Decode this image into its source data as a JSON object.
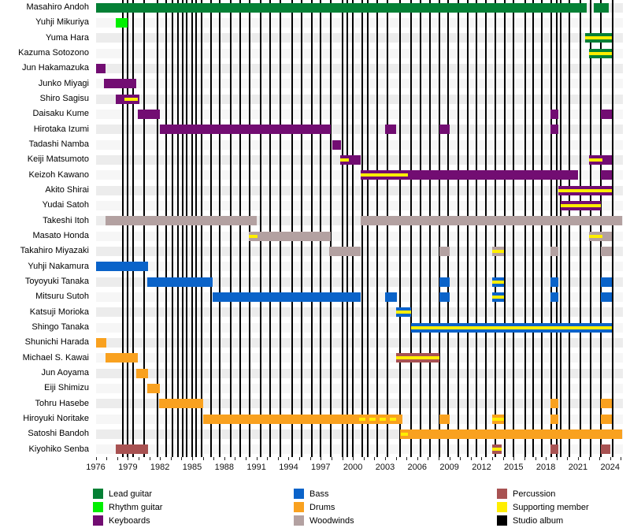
{
  "chart_data": {
    "type": "timeline",
    "description": "Band membership timeline by instrument, 1976-2025, with vertical lines marking studio albums",
    "x_axis": {
      "start": 1976,
      "end": 2025.2,
      "tick_labels": [
        "1976",
        "1979",
        "1982",
        "1985",
        "1988",
        "1991",
        "1994",
        "1997",
        "2000",
        "2003",
        "2006",
        "2009",
        "2012",
        "2015",
        "2018",
        "2021",
        "2024"
      ],
      "minor_tick_every_year": true
    },
    "colors": {
      "lead": "#048035",
      "rhythm": "#00ef00",
      "keys": "#720d72",
      "bass": "#0a63c9",
      "drums": "#f9a11f",
      "wood": "#b3a1a1",
      "perc": "#a85252",
      "support": "#ffee00",
      "album": "#000000",
      "band_even": "#ececec",
      "band_odd": "#f6f6f6"
    },
    "album_line_years": [
      1978.5,
      1979.0,
      1979.5,
      1980.5,
      1981.8,
      1982.6,
      1983.2,
      1983.7,
      1984.1,
      1984.5,
      1985.0,
      1985.4,
      1985.9,
      1986.8,
      1987.6,
      1988.6,
      1989.5,
      1990.4,
      1991.4,
      1992.3,
      1993.2,
      1994.3,
      1995.2,
      1996.2,
      1997.0,
      1997.9,
      1999.0,
      1999.5,
      2000.0,
      2000.9,
      2001.4,
      2002.3,
      2003.2,
      2004.4,
      2005.4,
      2006.3,
      2007.2,
      2008.1,
      2008.9,
      2009.8,
      2010.7,
      2011.5,
      2012.4,
      2013.3,
      2014.2,
      2015.0,
      2016.1,
      2016.8,
      2017.6,
      2018.5,
      2019.0,
      2019.4,
      2020.2,
      2021.2,
      2022.2,
      2023.1,
      2024.2
    ],
    "members": [
      {
        "name": "Masahiro Andoh",
        "segments": [
          {
            "role": "lead",
            "start": 1976.0,
            "end": 2021.8
          },
          {
            "role": "lead",
            "start": 2022.5,
            "end": 2023.9
          }
        ]
      },
      {
        "name": "Yuhji Mikuriya",
        "segments": [
          {
            "role": "rhythm",
            "start": 1977.9,
            "end": 1979.0
          }
        ]
      },
      {
        "name": "Yuma Hara",
        "segments": [
          {
            "role": "lead",
            "start": 2021.7,
            "end": 2024.2,
            "support": "full"
          }
        ]
      },
      {
        "name": "Kazuma Sotozono",
        "segments": [
          {
            "role": "lead",
            "start": 2022.0,
            "end": 2024.2,
            "support": "full"
          }
        ]
      },
      {
        "name": "Jun Hakamazuka",
        "segments": [
          {
            "role": "keys",
            "start": 1976.0,
            "end": 1976.9
          }
        ]
      },
      {
        "name": "Junko Miyagi",
        "segments": [
          {
            "role": "keys",
            "start": 1976.8,
            "end": 1979.8
          }
        ]
      },
      {
        "name": "Shiro Sagisu",
        "segments": [
          {
            "role": "keys",
            "start": 1977.9,
            "end": 1980.1,
            "support": {
              "start": 1978.7,
              "end": 1979.9
            }
          }
        ]
      },
      {
        "name": "Daisaku Kume",
        "segments": [
          {
            "role": "keys",
            "start": 1979.9,
            "end": 1982.0
          },
          {
            "role": "keys",
            "start": 2018.4,
            "end": 2019.2
          },
          {
            "role": "keys",
            "start": 2023.1,
            "end": 2024.2
          }
        ]
      },
      {
        "name": "Hirotaka Izumi",
        "segments": [
          {
            "role": "keys",
            "start": 1982.0,
            "end": 1997.9
          },
          {
            "role": "keys",
            "start": 2003.0,
            "end": 2004.0
          },
          {
            "role": "keys",
            "start": 2008.1,
            "end": 2009.0
          },
          {
            "role": "keys",
            "start": 2018.4,
            "end": 2019.2
          }
        ]
      },
      {
        "name": "Tadashi Namba",
        "segments": [
          {
            "role": "keys",
            "start": 1998.1,
            "end": 1998.9
          }
        ]
      },
      {
        "name": "Keiji Matsumoto",
        "segments": [
          {
            "role": "keys",
            "start": 1998.8,
            "end": 2000.7,
            "support": {
              "start": 1998.8,
              "end": 1999.6
            }
          },
          {
            "role": "keys",
            "start": 2022.0,
            "end": 2024.2,
            "support": {
              "start": 2022.0,
              "end": 2023.3
            }
          }
        ]
      },
      {
        "name": "Keizoh Kawano",
        "segments": [
          {
            "role": "keys",
            "start": 2000.7,
            "end": 2021.0,
            "support": {
              "start": 2000.7,
              "end": 2005.1
            }
          },
          {
            "role": "keys",
            "start": 2023.1,
            "end": 2024.2
          }
        ]
      },
      {
        "name": "Akito Shirai",
        "segments": [
          {
            "role": "keys",
            "start": 2019.2,
            "end": 2024.2,
            "support": "full"
          }
        ]
      },
      {
        "name": "Yudai Satoh",
        "segments": [
          {
            "role": "keys",
            "start": 2019.4,
            "end": 2023.1,
            "support": "full"
          }
        ]
      },
      {
        "name": "Takeshi Itoh",
        "segments": [
          {
            "role": "wood",
            "start": 1976.9,
            "end": 1991.0
          },
          {
            "role": "wood",
            "start": 2000.7,
            "end": 2025.1
          }
        ]
      },
      {
        "name": "Masato Honda",
        "segments": [
          {
            "role": "wood",
            "start": 1990.3,
            "end": 1997.9,
            "support": {
              "start": 1990.3,
              "end": 1991.1
            }
          },
          {
            "role": "wood",
            "start": 2022.0,
            "end": 2024.2,
            "support": {
              "start": 2022.0,
              "end": 2023.3
            }
          }
        ]
      },
      {
        "name": "Takahiro Miyazaki",
        "segments": [
          {
            "role": "wood",
            "start": 1997.8,
            "end": 2000.7
          },
          {
            "role": "wood",
            "start": 2008.1,
            "end": 2009.0
          },
          {
            "role": "wood",
            "start": 2013.0,
            "end": 2014.1,
            "support": "full"
          },
          {
            "role": "wood",
            "start": 2018.4,
            "end": 2019.2
          },
          {
            "role": "wood",
            "start": 2023.1,
            "end": 2024.2
          }
        ]
      },
      {
        "name": "Yuhji Nakamura",
        "segments": [
          {
            "role": "bass",
            "start": 1976.0,
            "end": 1980.9
          }
        ]
      },
      {
        "name": "Toyoyuki Tanaka",
        "segments": [
          {
            "role": "bass",
            "start": 1980.8,
            "end": 1986.9
          },
          {
            "role": "bass",
            "start": 2008.1,
            "end": 2009.0
          },
          {
            "role": "bass",
            "start": 2013.0,
            "end": 2014.1,
            "support": "full"
          },
          {
            "role": "bass",
            "start": 2018.4,
            "end": 2019.2
          },
          {
            "role": "bass",
            "start": 2023.1,
            "end": 2024.2
          }
        ]
      },
      {
        "name": "Mitsuru Sutoh",
        "segments": [
          {
            "role": "bass",
            "start": 1986.9,
            "end": 2000.7
          },
          {
            "role": "bass",
            "start": 2003.0,
            "end": 2004.1
          },
          {
            "role": "bass",
            "start": 2008.1,
            "end": 2009.0
          },
          {
            "role": "bass",
            "start": 2013.0,
            "end": 2014.1,
            "support": "full"
          },
          {
            "role": "bass",
            "start": 2018.4,
            "end": 2019.2
          },
          {
            "role": "bass",
            "start": 2023.1,
            "end": 2024.2
          }
        ]
      },
      {
        "name": "Katsuji Morioka",
        "segments": [
          {
            "role": "bass",
            "start": 2004.0,
            "end": 2005.4,
            "support": "full"
          }
        ]
      },
      {
        "name": "Shingo Tanaka",
        "segments": [
          {
            "role": "bass",
            "start": 2005.4,
            "end": 2024.2,
            "support": "full"
          }
        ]
      },
      {
        "name": "Shunichi Harada",
        "segments": [
          {
            "role": "drums",
            "start": 1976.0,
            "end": 1977.0
          }
        ]
      },
      {
        "name": "Michael S. Kawai",
        "segments": [
          {
            "role": "drums",
            "start": 1976.9,
            "end": 1979.9
          },
          {
            "role": "perc",
            "start": 2004.0,
            "end": 2008.1,
            "support": "full"
          }
        ]
      },
      {
        "name": "Jun Aoyama",
        "segments": [
          {
            "role": "drums",
            "start": 1979.8,
            "end": 1980.9
          }
        ]
      },
      {
        "name": "Eiji Shimizu",
        "segments": [
          {
            "role": "drums",
            "start": 1980.8,
            "end": 1982.0
          }
        ]
      },
      {
        "name": "Tohru Hasebe",
        "segments": [
          {
            "role": "drums",
            "start": 1981.9,
            "end": 1986.0
          },
          {
            "role": "drums",
            "start": 2018.4,
            "end": 2019.2
          },
          {
            "role": "drums",
            "start": 2023.1,
            "end": 2024.2
          }
        ]
      },
      {
        "name": "Hiroyuki Noritake",
        "segments": [
          {
            "role": "drums",
            "start": 1986.0,
            "end": 2004.6,
            "support": {
              "start": 2000.6,
              "end": 2004.3,
              "dashed": true
            }
          },
          {
            "role": "drums",
            "start": 2008.1,
            "end": 2009.0
          },
          {
            "role": "drums",
            "start": 2013.0,
            "end": 2014.1,
            "support": "full"
          },
          {
            "role": "drums",
            "start": 2018.4,
            "end": 2019.2
          },
          {
            "role": "drums",
            "start": 2023.1,
            "end": 2024.2
          }
        ]
      },
      {
        "name": "Satoshi Bandoh",
        "segments": [
          {
            "role": "drums",
            "start": 2004.4,
            "end": 2025.1,
            "support": {
              "start": 2004.5,
              "end": 2005.1
            }
          }
        ]
      },
      {
        "name": "Kiyohiko Senba",
        "segments": [
          {
            "role": "perc",
            "start": 1977.9,
            "end": 1980.9
          },
          {
            "role": "perc",
            "start": 2013.0,
            "end": 2013.9,
            "support": "full"
          },
          {
            "role": "perc",
            "start": 2018.4,
            "end": 2019.2
          },
          {
            "role": "perc",
            "start": 2023.1,
            "end": 2024.0
          }
        ]
      }
    ]
  },
  "legend": {
    "columns": [
      {
        "items": [
          {
            "label": "Lead guitar",
            "role": "lead"
          },
          {
            "label": "Rhythm guitar",
            "role": "rhythm"
          },
          {
            "label": "Keyboards",
            "role": "keys"
          }
        ]
      },
      {
        "items": [
          {
            "label": "Bass",
            "role": "bass"
          },
          {
            "label": "Drums",
            "role": "drums"
          },
          {
            "label": "Woodwinds",
            "role": "wood"
          }
        ]
      },
      {
        "items": [
          {
            "label": "Percussion",
            "role": "perc"
          },
          {
            "label": "Supporting member",
            "role": "support"
          },
          {
            "label": "Studio album",
            "role": "album"
          }
        ]
      }
    ]
  }
}
